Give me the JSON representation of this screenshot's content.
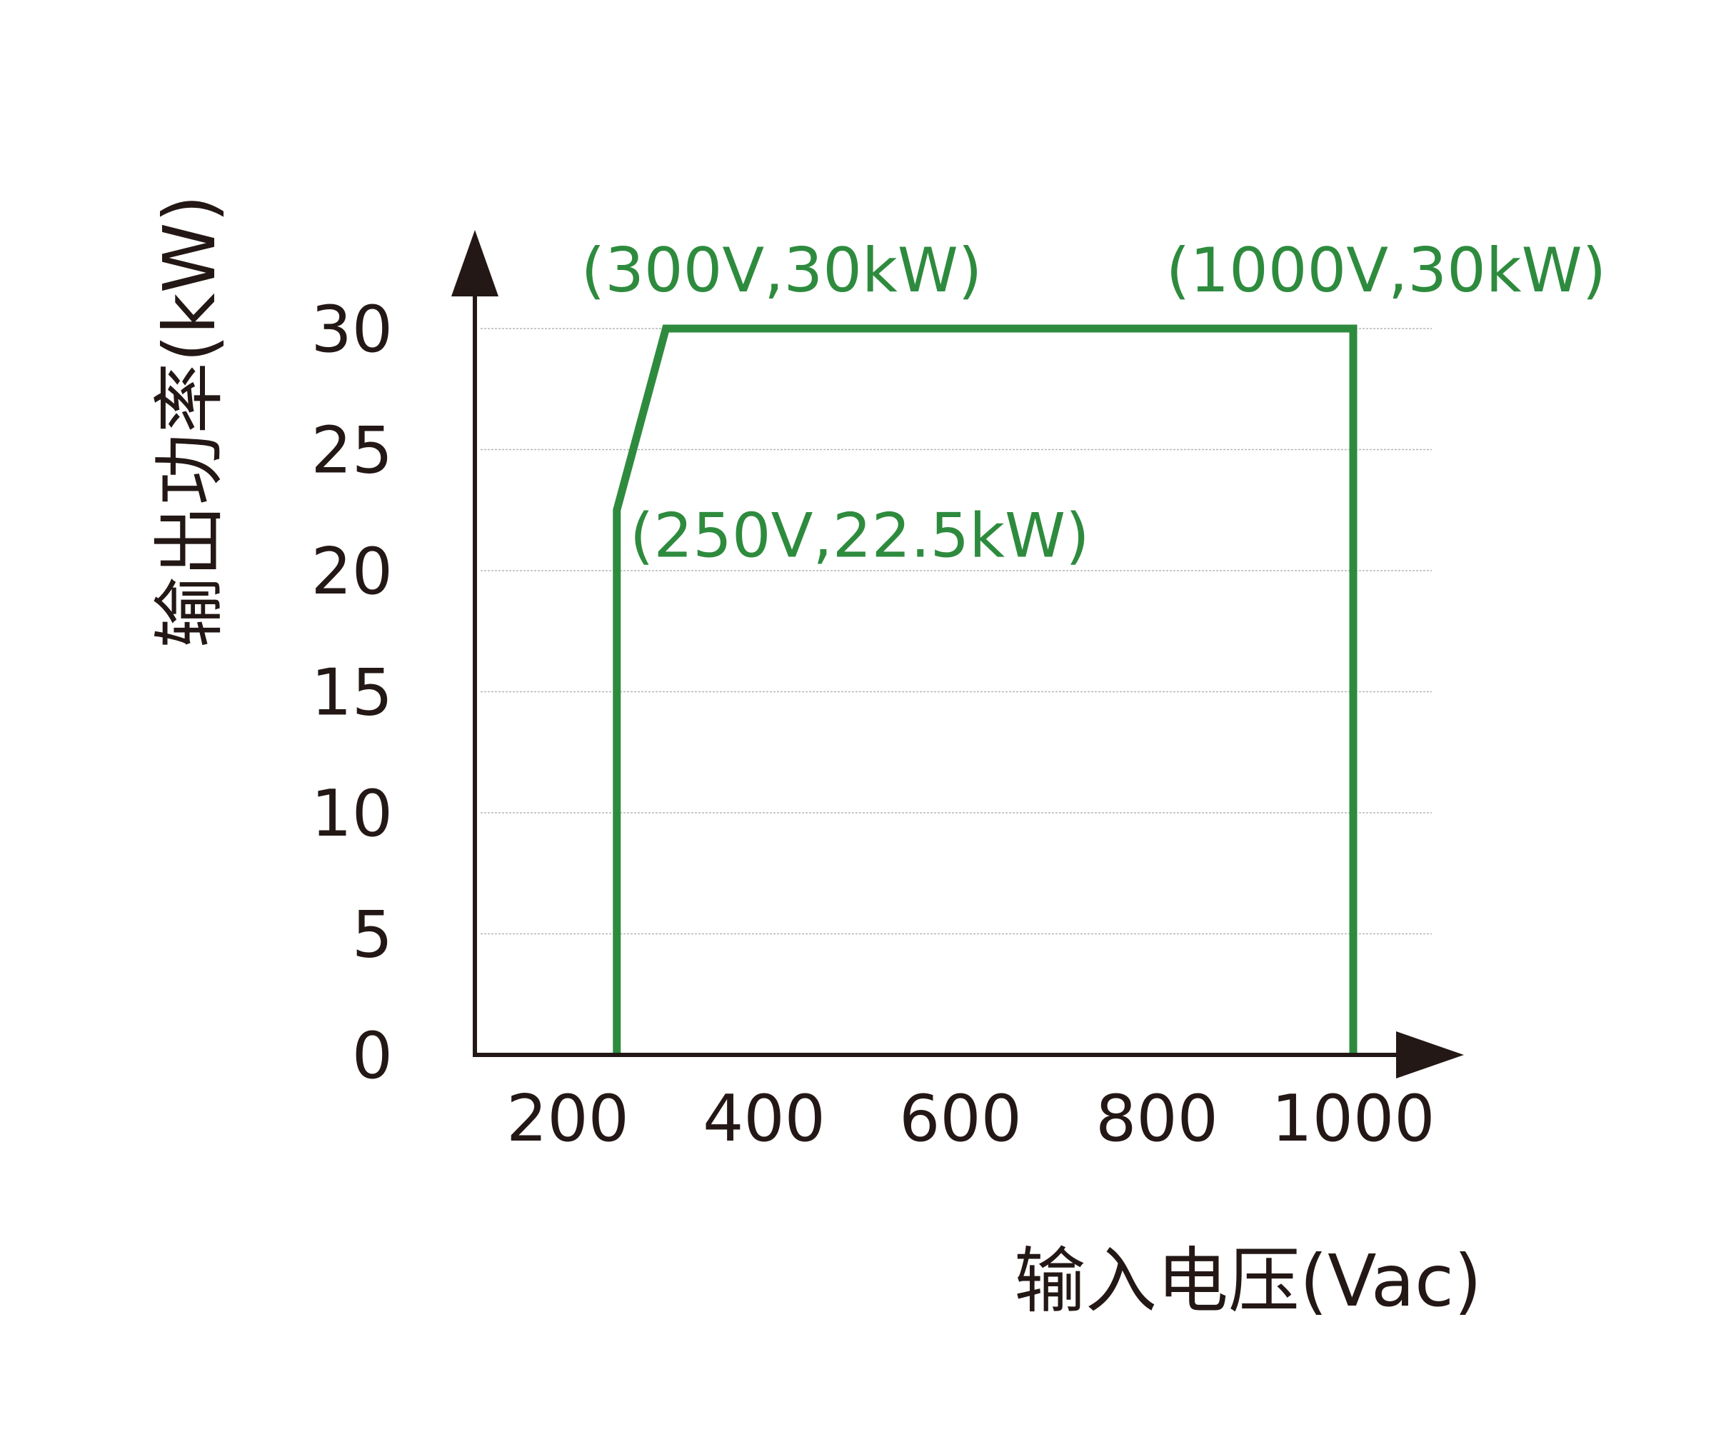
{
  "chart_data": {
    "type": "line",
    "title": "",
    "xlabel": "输入电压(Vac)",
    "ylabel": "输出功率(kW)",
    "xlim": [
      100,
      1100
    ],
    "ylim": [
      0,
      30
    ],
    "x_ticks": [
      200,
      400,
      600,
      800,
      1000
    ],
    "x_tick_labels": [
      "200",
      "400",
      "600",
      "800",
      "1000"
    ],
    "y_ticks": [
      0,
      5,
      10,
      15,
      20,
      25,
      30
    ],
    "y_tick_labels": [
      "0",
      "5",
      "10",
      "15",
      "20",
      "25",
      "30"
    ],
    "grid": true,
    "legend": "none",
    "series": [
      {
        "color": "#2e8b3e",
        "points": [
          {
            "x": 250,
            "y": 0
          },
          {
            "x": 250,
            "y": 22.5
          },
          {
            "x": 300,
            "y": 30
          },
          {
            "x": 1000,
            "y": 30
          },
          {
            "x": 1000,
            "y": 0
          }
        ]
      }
    ],
    "annotations": [
      {
        "text": "(300V,30kW)",
        "x": 300,
        "y": 30
      },
      {
        "text": "(1000V,30kW)",
        "x": 1000,
        "y": 30
      },
      {
        "text": "(250V,22.5kW)",
        "x": 250,
        "y": 22.5
      }
    ],
    "colors": {
      "axis": "#231815",
      "grid": "#b5b5b5",
      "series": "#2e8b3e"
    }
  }
}
